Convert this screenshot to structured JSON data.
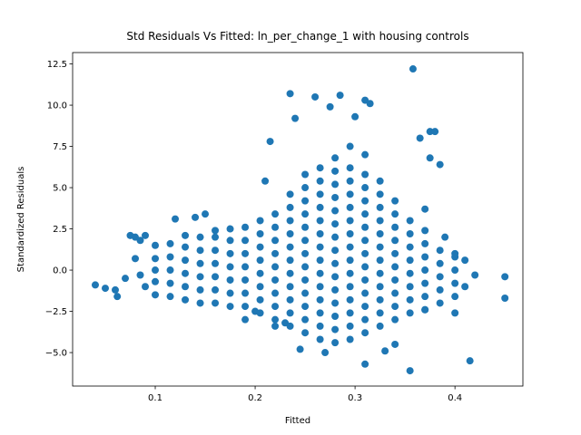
{
  "chart_data": {
    "type": "scatter",
    "title": "Std Residuals Vs Fitted: ln_per_change_1 with housing controls",
    "x_label": "Fitted",
    "y_label": "Standardized Residuals",
    "color": "#1f77b4",
    "xlim": [
      0.0173,
      0.468
    ],
    "ylim": [
      -7.03,
      13.19
    ],
    "xticks": [
      0.1,
      0.2,
      0.3,
      0.4
    ],
    "yticks": [
      {
        "value": -5,
        "label": "−5.0"
      },
      {
        "value": -2.5,
        "label": "−2.5"
      },
      {
        "value": 0,
        "label": "0.0"
      },
      {
        "value": 2.5,
        "label": "2.5"
      },
      {
        "value": 5,
        "label": "5.0"
      },
      {
        "value": 7.5,
        "label": "7.5"
      },
      {
        "value": 10,
        "label": "10.0"
      },
      {
        "value": 12.5,
        "label": "12.5"
      }
    ],
    "x": [
      0.04,
      0.05,
      0.06,
      0.062,
      0.07,
      0.075,
      0.08,
      0.085,
      0.09,
      0.08,
      0.085,
      0.09,
      0.12,
      0.14,
      0.15,
      0.16,
      0.19,
      0.2,
      0.215,
      0.21,
      0.235,
      0.24,
      0.26,
      0.275,
      0.285,
      0.31,
      0.315,
      0.3,
      0.358,
      0.365,
      0.375,
      0.38,
      0.385,
      0.375,
      0.37,
      0.39,
      0.4,
      0.41,
      0.42,
      0.45,
      0.45,
      0.415,
      0.355,
      0.31,
      0.27,
      0.245,
      0.33,
      0.34,
      0.4,
      0.41,
      0.37,
      0.22,
      0.23,
      0.1,
      0.1,
      0.1,
      0.1,
      0.1,
      0.115,
      0.115,
      0.115,
      0.115,
      0.115,
      0.13,
      0.13,
      0.13,
      0.13,
      0.13,
      0.13,
      0.145,
      0.145,
      0.145,
      0.145,
      0.145,
      0.145,
      0.16,
      0.16,
      0.16,
      0.16,
      0.16,
      0.16,
      0.175,
      0.175,
      0.175,
      0.175,
      0.175,
      0.175,
      0.175,
      0.19,
      0.19,
      0.19,
      0.19,
      0.19,
      0.19,
      0.19,
      0.205,
      0.205,
      0.205,
      0.205,
      0.205,
      0.205,
      0.205,
      0.205,
      0.22,
      0.22,
      0.22,
      0.22,
      0.22,
      0.22,
      0.22,
      0.22,
      0.22,
      0.235,
      0.235,
      0.235,
      0.235,
      0.235,
      0.235,
      0.235,
      0.235,
      0.235,
      0.235,
      0.235,
      0.25,
      0.25,
      0.25,
      0.25,
      0.25,
      0.25,
      0.25,
      0.25,
      0.25,
      0.25,
      0.25,
      0.25,
      0.25,
      0.265,
      0.265,
      0.265,
      0.265,
      0.265,
      0.265,
      0.265,
      0.265,
      0.265,
      0.265,
      0.265,
      0.265,
      0.265,
      0.265,
      0.28,
      0.28,
      0.28,
      0.28,
      0.28,
      0.28,
      0.28,
      0.28,
      0.28,
      0.28,
      0.28,
      0.28,
      0.28,
      0.28,
      0.28,
      0.295,
      0.295,
      0.295,
      0.295,
      0.295,
      0.295,
      0.295,
      0.295,
      0.295,
      0.295,
      0.295,
      0.295,
      0.295,
      0.295,
      0.295,
      0.31,
      0.31,
      0.31,
      0.31,
      0.31,
      0.31,
      0.31,
      0.31,
      0.31,
      0.31,
      0.31,
      0.31,
      0.31,
      0.31,
      0.325,
      0.325,
      0.325,
      0.325,
      0.325,
      0.325,
      0.325,
      0.325,
      0.325,
      0.325,
      0.325,
      0.325,
      0.34,
      0.34,
      0.34,
      0.34,
      0.34,
      0.34,
      0.34,
      0.34,
      0.34,
      0.34,
      0.355,
      0.355,
      0.355,
      0.355,
      0.355,
      0.355,
      0.355,
      0.355,
      0.37,
      0.37,
      0.37,
      0.37,
      0.37,
      0.37,
      0.37,
      0.385,
      0.385,
      0.385,
      0.385,
      0.385,
      0.4,
      0.4,
      0.4,
      0.4
    ],
    "values": [
      -0.9,
      -1.1,
      -1.2,
      -1.6,
      -0.5,
      2.1,
      2.0,
      1.8,
      2.1,
      0.7,
      -0.3,
      -1.0,
      3.1,
      3.2,
      3.4,
      2.4,
      -3.0,
      -2.5,
      7.8,
      5.4,
      10.7,
      9.2,
      10.5,
      9.9,
      10.6,
      10.3,
      10.1,
      9.3,
      12.2,
      8.0,
      8.4,
      8.4,
      6.4,
      6.8,
      3.7,
      2.0,
      1.0,
      0.6,
      -0.3,
      -0.4,
      -1.7,
      -5.5,
      -6.1,
      -5.7,
      -5.0,
      -4.8,
      -4.9,
      -4.5,
      -2.6,
      -1.0,
      -2.4,
      -3.4,
      -3.2,
      -1.5,
      -0.7,
      0,
      0.7,
      1.5,
      -1.6,
      -0.8,
      0,
      0.8,
      1.6,
      -1.8,
      -1,
      -0.2,
      0.6,
      1.4,
      2.1,
      -2,
      -1.2,
      -0.4,
      0.4,
      1.2,
      2,
      -2,
      -1.2,
      -0.4,
      0.4,
      1.2,
      2,
      -2.2,
      -1.4,
      -0.6,
      0.2,
      1,
      1.8,
      2.5,
      -2.2,
      -1.4,
      -0.6,
      0.2,
      1,
      1.8,
      2.6,
      -2.6,
      -1.8,
      -1,
      -0.2,
      0.6,
      1.4,
      2.2,
      3,
      -3,
      -2.2,
      -1.4,
      -0.6,
      0.2,
      1,
      1.8,
      2.6,
      3.4,
      -3.4,
      -2.6,
      -1.8,
      -1,
      -0.2,
      0.6,
      1.4,
      2.2,
      3,
      3.8,
      4.6,
      -3.8,
      -3,
      -2.2,
      -1.4,
      -0.6,
      0.2,
      1,
      1.8,
      2.6,
      3.4,
      4.2,
      5,
      5.8,
      -4.2,
      -3.4,
      -2.6,
      -1.8,
      -1,
      -0.2,
      0.6,
      1.4,
      2.2,
      3,
      3.8,
      4.6,
      5.4,
      6.2,
      -4.4,
      -3.6,
      -2.8,
      -2,
      -1.2,
      -0.4,
      0.4,
      1.2,
      2,
      2.8,
      3.6,
      4.4,
      5.2,
      6,
      6.8,
      -4.2,
      -3.4,
      -2.6,
      -1.8,
      -1,
      -0.2,
      0.6,
      1.4,
      2.2,
      3,
      3.8,
      4.6,
      5.4,
      6.2,
      7.5,
      -3.8,
      -3,
      -2.2,
      -1.4,
      -0.6,
      0.2,
      1,
      1.8,
      2.6,
      3.4,
      4.2,
      5,
      5.8,
      7,
      -3.4,
      -2.6,
      -1.8,
      -1,
      -0.2,
      0.6,
      1.4,
      2.2,
      3,
      3.8,
      4.6,
      5.4,
      -3,
      -2.2,
      -1.4,
      -0.6,
      0.2,
      1,
      1.8,
      2.6,
      3.4,
      4.2,
      -2.6,
      -1.8,
      -1,
      -0.2,
      0.6,
      1.4,
      2.2,
      3,
      -2.4,
      -1.6,
      -0.8,
      0,
      0.8,
      1.6,
      2.4,
      -2,
      -1.2,
      -0.4,
      0.4,
      1.2,
      -1.6,
      -0.8,
      0,
      0.8
    ]
  }
}
